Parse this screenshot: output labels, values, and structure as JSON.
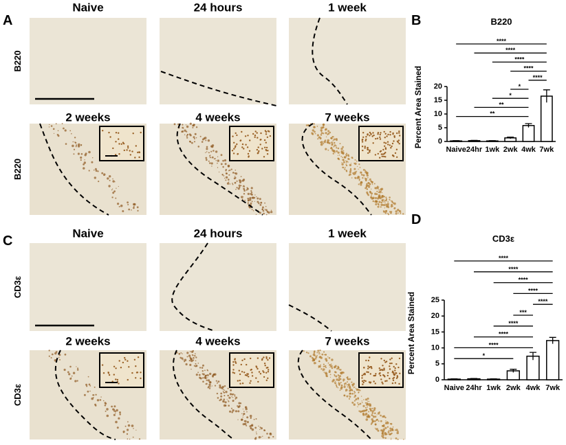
{
  "panels": [
    {
      "label": "A",
      "rows": [
        {
          "row_label": "B220",
          "images": [
            "Naive",
            "24 hours",
            "1 week"
          ]
        },
        {
          "row_label": "B220",
          "images": [
            "2 weeks",
            "4 weeks",
            "7 weeks"
          ]
        }
      ]
    },
    {
      "label": "C",
      "rows": [
        {
          "row_label": "CD3ε",
          "images": [
            "Naive",
            "24 hours",
            "1 week"
          ]
        },
        {
          "row_label": "CD3ε",
          "images": [
            "2 weeks",
            "4 weeks",
            "7 weeks"
          ]
        }
      ]
    }
  ],
  "chart_data": [
    {
      "type": "bar",
      "panel": "B",
      "title": "B220",
      "y_label": "Percent Area Stained",
      "categories": [
        "Naive",
        "24hr",
        "1wk",
        "2wk",
        "4wk",
        "7wk"
      ],
      "values": [
        0.2,
        0.3,
        0.2,
        1.3,
        5.8,
        16.5
      ],
      "errors": [
        0.1,
        0.1,
        0.1,
        0.3,
        0.7,
        2.3
      ],
      "color": "#ffffff",
      "ylim": [
        0,
        20
      ],
      "yticks": [
        0,
        5,
        10,
        15,
        20
      ],
      "significance": [
        {
          "from": "Naive",
          "to": "7wk",
          "label": "****"
        },
        {
          "from": "24hr",
          "to": "7wk",
          "label": "****"
        },
        {
          "from": "1wk",
          "to": "7wk",
          "label": "****"
        },
        {
          "from": "2wk",
          "to": "7wk",
          "label": "****"
        },
        {
          "from": "4wk",
          "to": "7wk",
          "label": "****"
        },
        {
          "from": "2wk",
          "to": "4wk",
          "label": "*"
        },
        {
          "from": "1wk",
          "to": "4wk",
          "label": "*"
        },
        {
          "from": "24hr",
          "to": "4wk",
          "label": "**"
        },
        {
          "from": "Naive",
          "to": "4wk",
          "label": "**"
        }
      ]
    },
    {
      "type": "bar",
      "panel": "D",
      "title": "CD3ε",
      "y_label": "Percent Area Stained",
      "categories": [
        "Naive",
        "24hr",
        "1wk",
        "2wk",
        "4wk",
        "7wk"
      ],
      "values": [
        0.2,
        0.3,
        0.2,
        2.8,
        7.4,
        12.3
      ],
      "errors": [
        0.1,
        0.1,
        0.1,
        0.5,
        1.2,
        1.0
      ],
      "color": "#ffffff",
      "ylim": [
        0,
        25
      ],
      "yticks": [
        0,
        5,
        10,
        15,
        20,
        25
      ],
      "significance": [
        {
          "from": "Naive",
          "to": "7wk",
          "label": "****"
        },
        {
          "from": "24hr",
          "to": "7wk",
          "label": "****"
        },
        {
          "from": "1wk",
          "to": "7wk",
          "label": "****"
        },
        {
          "from": "2wk",
          "to": "7wk",
          "label": "****"
        },
        {
          "from": "4wk",
          "to": "7wk",
          "label": "****"
        },
        {
          "from": "2wk",
          "to": "4wk",
          "label": "***"
        },
        {
          "from": "1wk",
          "to": "4wk",
          "label": "****"
        },
        {
          "from": "24hr",
          "to": "4wk",
          "label": "****"
        },
        {
          "from": "Naive",
          "to": "4wk",
          "label": "****"
        },
        {
          "from": "Naive",
          "to": "2wk",
          "label": "*"
        }
      ]
    }
  ]
}
